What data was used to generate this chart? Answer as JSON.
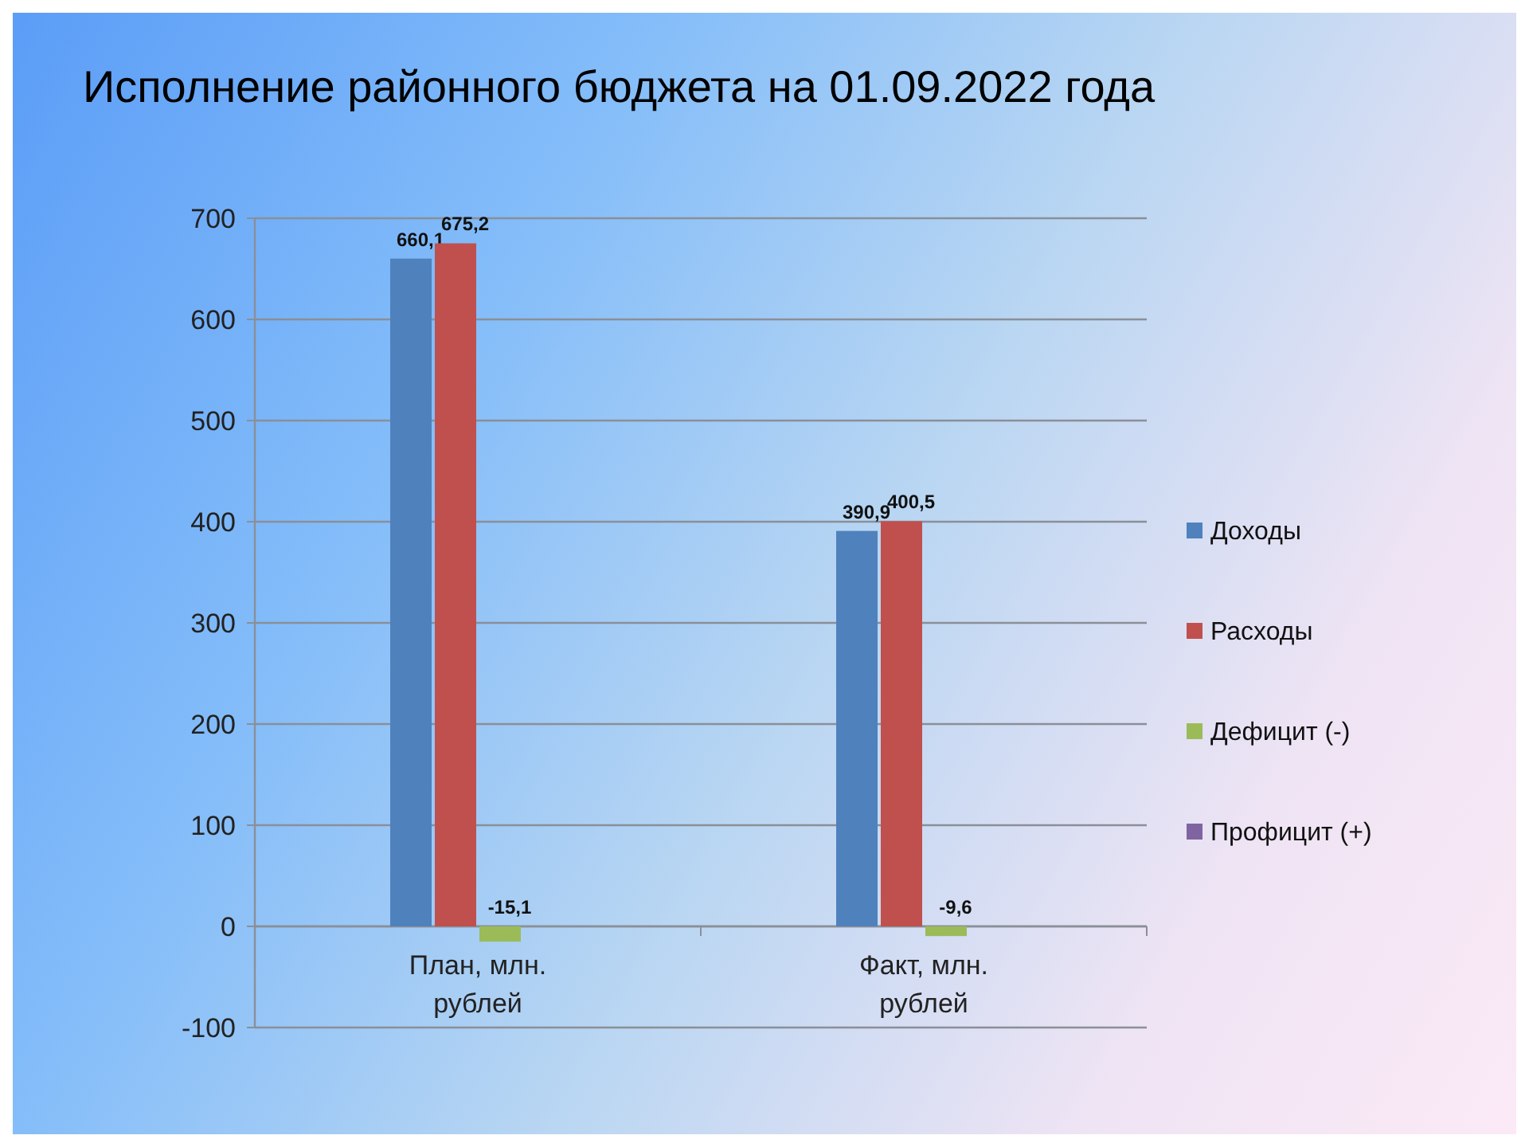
{
  "chart_data": {
    "type": "bar",
    "title": "Исполнение районного бюджета на 01.09.2022 года",
    "categories": [
      "План, млн. рублей",
      "Факт, млн. рублей"
    ],
    "series": [
      {
        "name": "Доходы",
        "color": "#4f81bd",
        "values": [
          660.1,
          390.9
        ],
        "value_labels": [
          "660,1",
          "390,9"
        ]
      },
      {
        "name": "Расходы",
        "color": "#c0504d",
        "values": [
          675.2,
          400.5
        ],
        "value_labels": [
          "675,2",
          "400,5"
        ]
      },
      {
        "name": "Дефицит (-)",
        "color": "#9bbb59",
        "values": [
          -15.1,
          -9.6
        ],
        "value_labels": [
          "-15,1",
          "-9,6"
        ]
      },
      {
        "name": "Профицит (+)",
        "color": "#8064a2",
        "values": [
          null,
          null
        ]
      }
    ],
    "ylim": [
      -100,
      700
    ],
    "yticks": [
      -100,
      0,
      100,
      200,
      300,
      400,
      500,
      600,
      700
    ],
    "grid": "y",
    "legend": "right"
  }
}
